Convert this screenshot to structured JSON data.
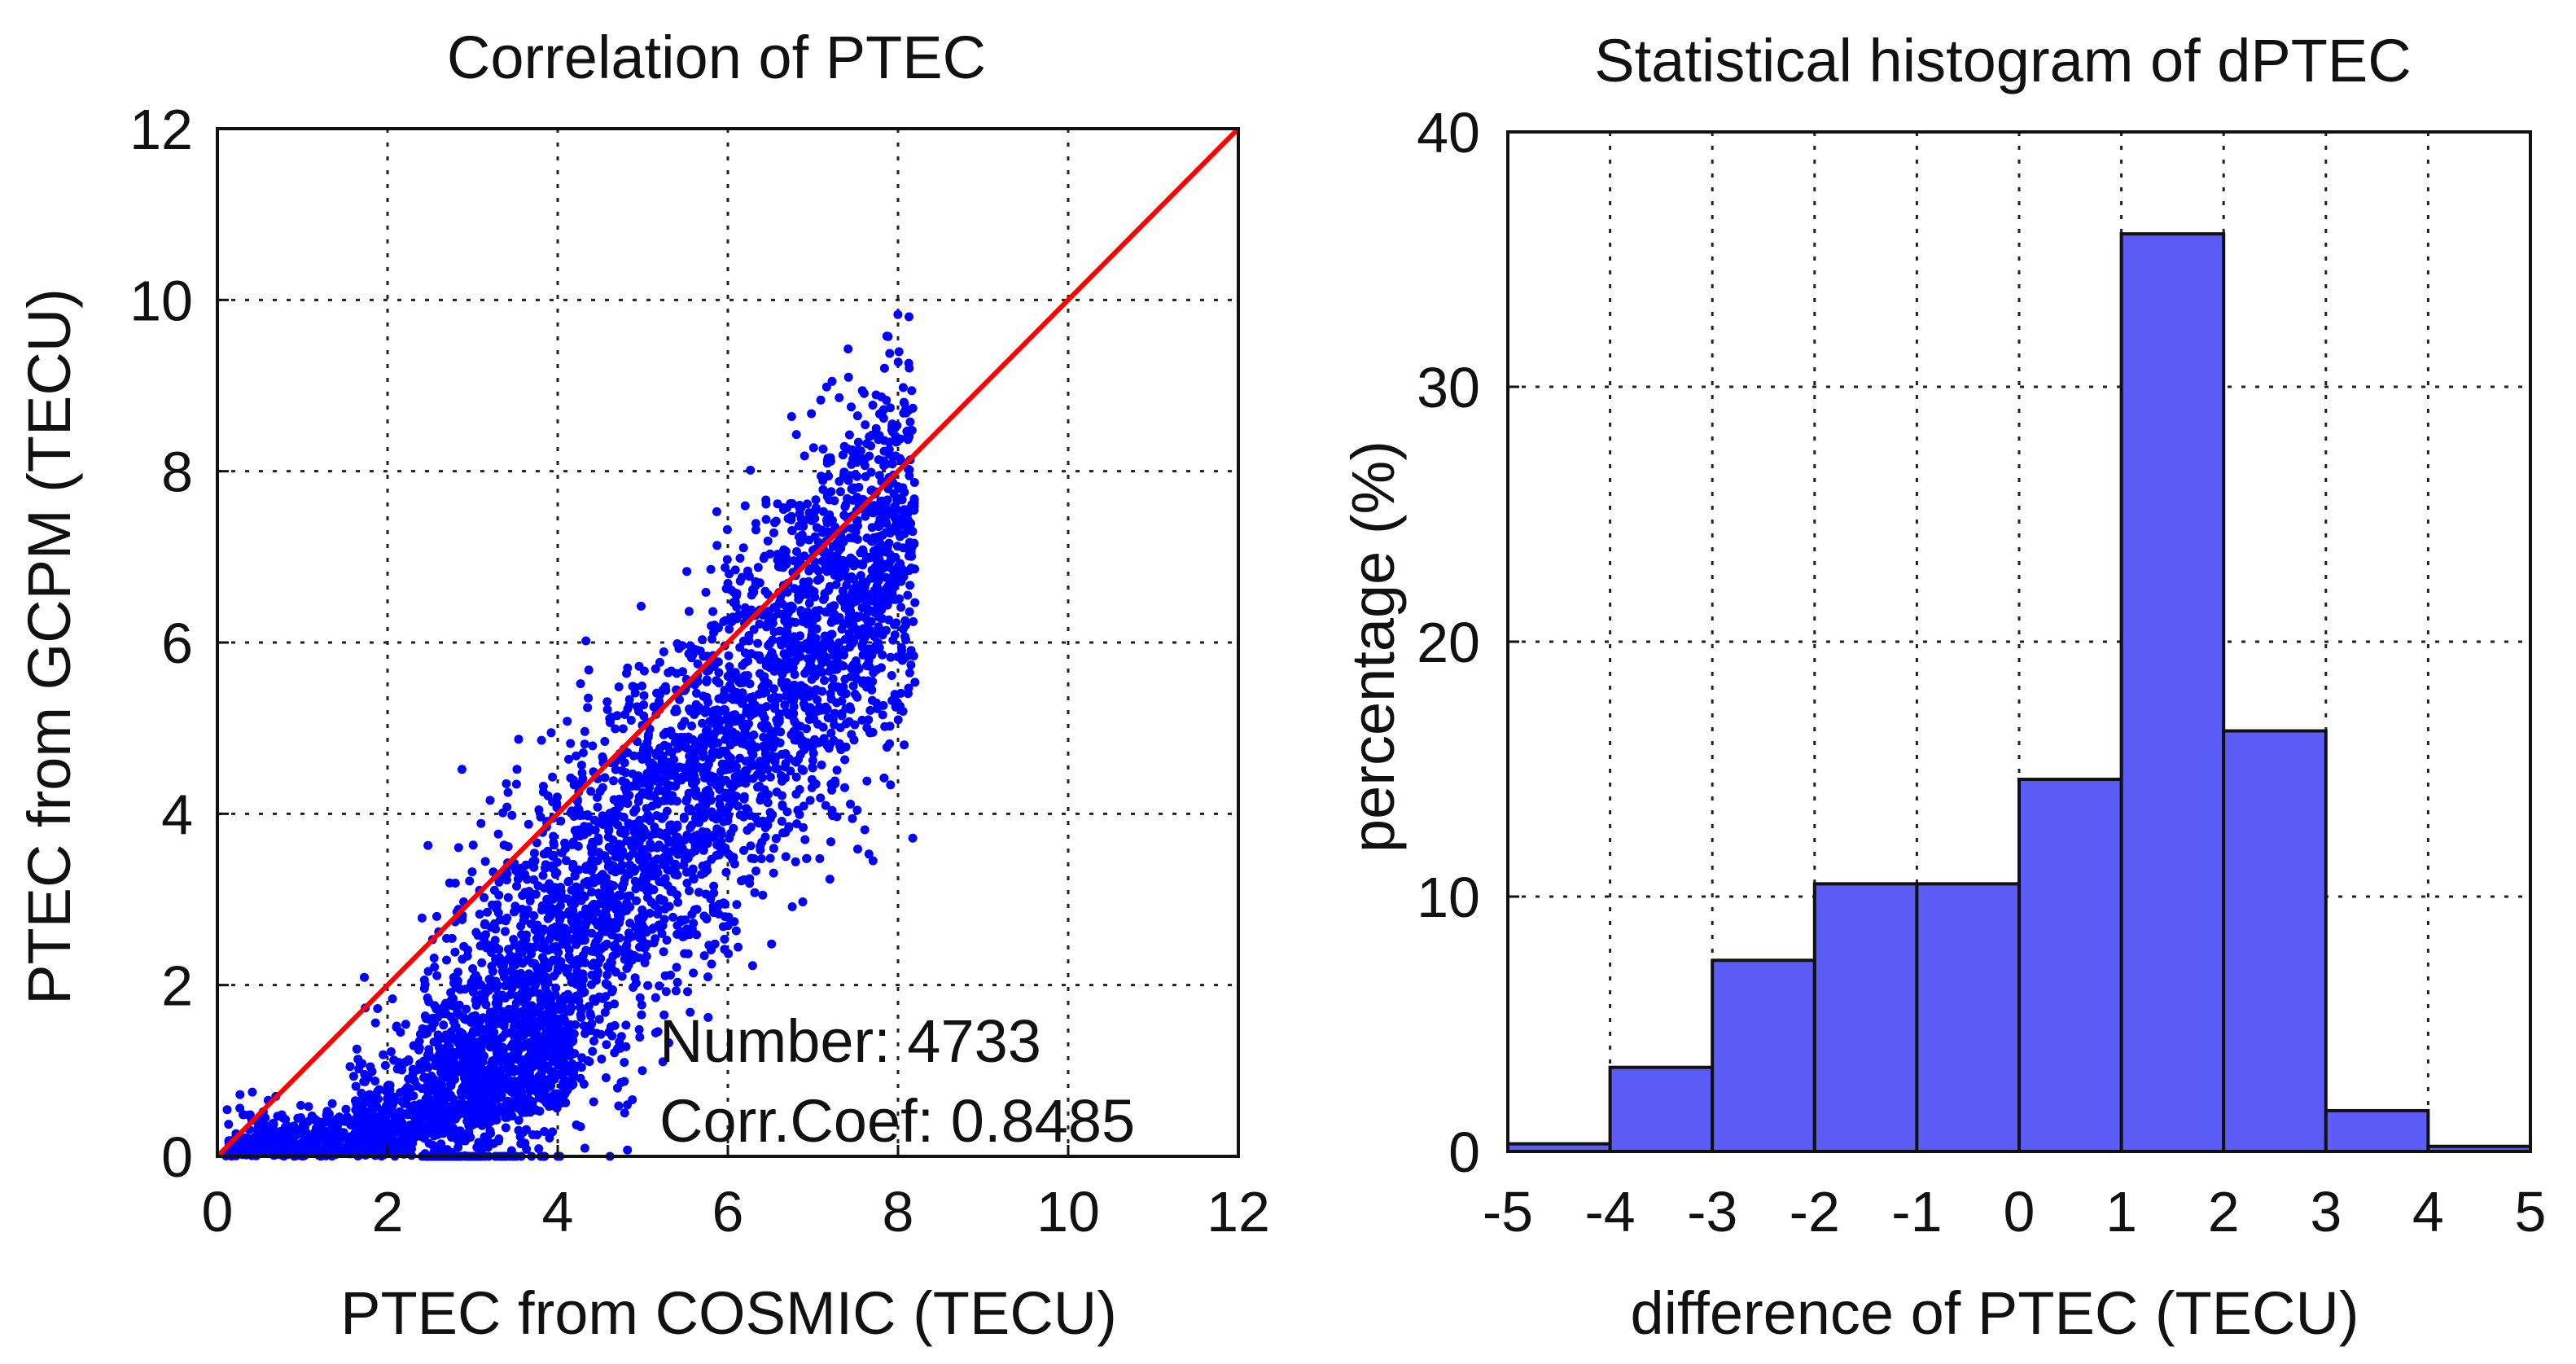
{
  "chart_data": [
    {
      "type": "scatter",
      "title": "Correlation of PTEC",
      "xlabel": "PTEC from COSMIC (TECU)",
      "ylabel": "PTEC from GCPM (TECU)",
      "xlim": [
        0,
        12
      ],
      "ylim": [
        0,
        12
      ],
      "xticks": [
        "0",
        "2",
        "4",
        "6",
        "8",
        "10",
        "12"
      ],
      "yticks": [
        "0",
        "2",
        "4",
        "6",
        "8",
        "10",
        "12"
      ],
      "grid": true,
      "point_color": "#0000ff",
      "reference_line": {
        "from": [
          0,
          0
        ],
        "to": [
          12,
          12
        ],
        "color": "#ff0000"
      },
      "annotations": [
        "Number: 4733",
        "Corr.Coef: 0.8485"
      ],
      "number_of_points": 4733,
      "corr_coef": 0.8485
    },
    {
      "type": "bar",
      "title": "Statistical histogram of dPTEC",
      "xlabel": "difference of PTEC (TECU)",
      "ylabel": "percentage  (%)",
      "xlim": [
        -5,
        5
      ],
      "ylim": [
        0,
        40
      ],
      "xticks": [
        "-5",
        "-4",
        "-3",
        "-2",
        "-1",
        "0",
        "1",
        "2",
        "3",
        "4",
        "5"
      ],
      "yticks": [
        "0",
        "10",
        "20",
        "30",
        "40"
      ],
      "grid": true,
      "bar_color": "#5b5bf5",
      "bins": [
        {
          "start": -5,
          "end": -4,
          "value": 0.3
        },
        {
          "start": -4,
          "end": -3,
          "value": 3.3
        },
        {
          "start": -3,
          "end": -2,
          "value": 7.5
        },
        {
          "start": -2,
          "end": -1,
          "value": 10.5
        },
        {
          "start": -1,
          "end": 0,
          "value": 10.5
        },
        {
          "start": 0,
          "end": 1,
          "value": 14.6
        },
        {
          "start": 1,
          "end": 2,
          "value": 36.0
        },
        {
          "start": 2,
          "end": 3,
          "value": 16.5
        },
        {
          "start": 3,
          "end": 4,
          "value": 1.6
        },
        {
          "start": 4,
          "end": 5,
          "value": 0.2
        }
      ]
    }
  ]
}
